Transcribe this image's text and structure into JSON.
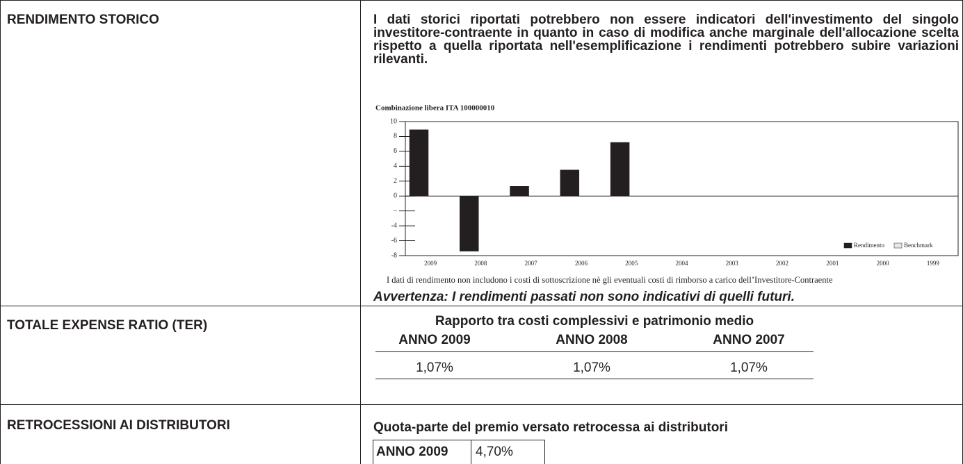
{
  "rows": [
    {
      "label": "RENDIMENTO STORICO",
      "text": "I dati storici riportati potrebbero non essere indicatori dell'investimento del singolo investitore-contraente in quanto in caso di modifica anche marginale dell'allocazione scelta rispetto a quella riportata nell'esemplificazione i rendimenti potrebbero subire variazioni rilevanti.",
      "note": "I dati di rendimento non includono i costi di sottoscrizione nè gli eventuali costi di rimborso a carico dell’Investitore-Contraente",
      "warning": "Avvertenza: I rendimenti passati non sono indicativi di quelli futuri."
    },
    {
      "label": "TOTALE EXPENSE RATIO (TER)",
      "table_title": "Rapporto tra costi complessivi e patrimonio medio",
      "table": {
        "header": [
          "ANNO 2009",
          "ANNO 2008",
          "ANNO 2007"
        ],
        "rows": [
          [
            "1,07%",
            "1,07%",
            "1,07%"
          ]
        ]
      }
    },
    {
      "label": "RETROCESSIONI AI DISTRIBUTORI",
      "text": "Quota-parte del premio versato retrocessa ai distributori",
      "table": {
        "rows": [
          [
            "ANNO 2009",
            "4,70%"
          ]
        ]
      }
    }
  ],
  "chart_data": {
    "type": "bar",
    "title": "Combinazione libera ITA 100000010",
    "categories": [
      "2009",
      "2008",
      "2007",
      "2006",
      "2005",
      "2004",
      "2003",
      "2002",
      "2001",
      "2000",
      "1999"
    ],
    "series": [
      {
        "name": "Rendimento",
        "color": "#231f20",
        "values": [
          8.9,
          -7.4,
          1.3,
          3.5,
          7.2,
          0,
          0,
          0,
          0,
          0,
          0
        ]
      },
      {
        "name": "Benchmark",
        "color": "#e6e7e8",
        "values": [
          0,
          0,
          0,
          0,
          0,
          0,
          0,
          0,
          0,
          0,
          0
        ]
      }
    ],
    "ylim": [
      -8,
      10
    ],
    "yticks": [
      10,
      8,
      6,
      4,
      2,
      0,
      {
        "value": -2,
        "label": "–"
      },
      -4,
      -6,
      -8
    ],
    "legend": "lower right"
  }
}
